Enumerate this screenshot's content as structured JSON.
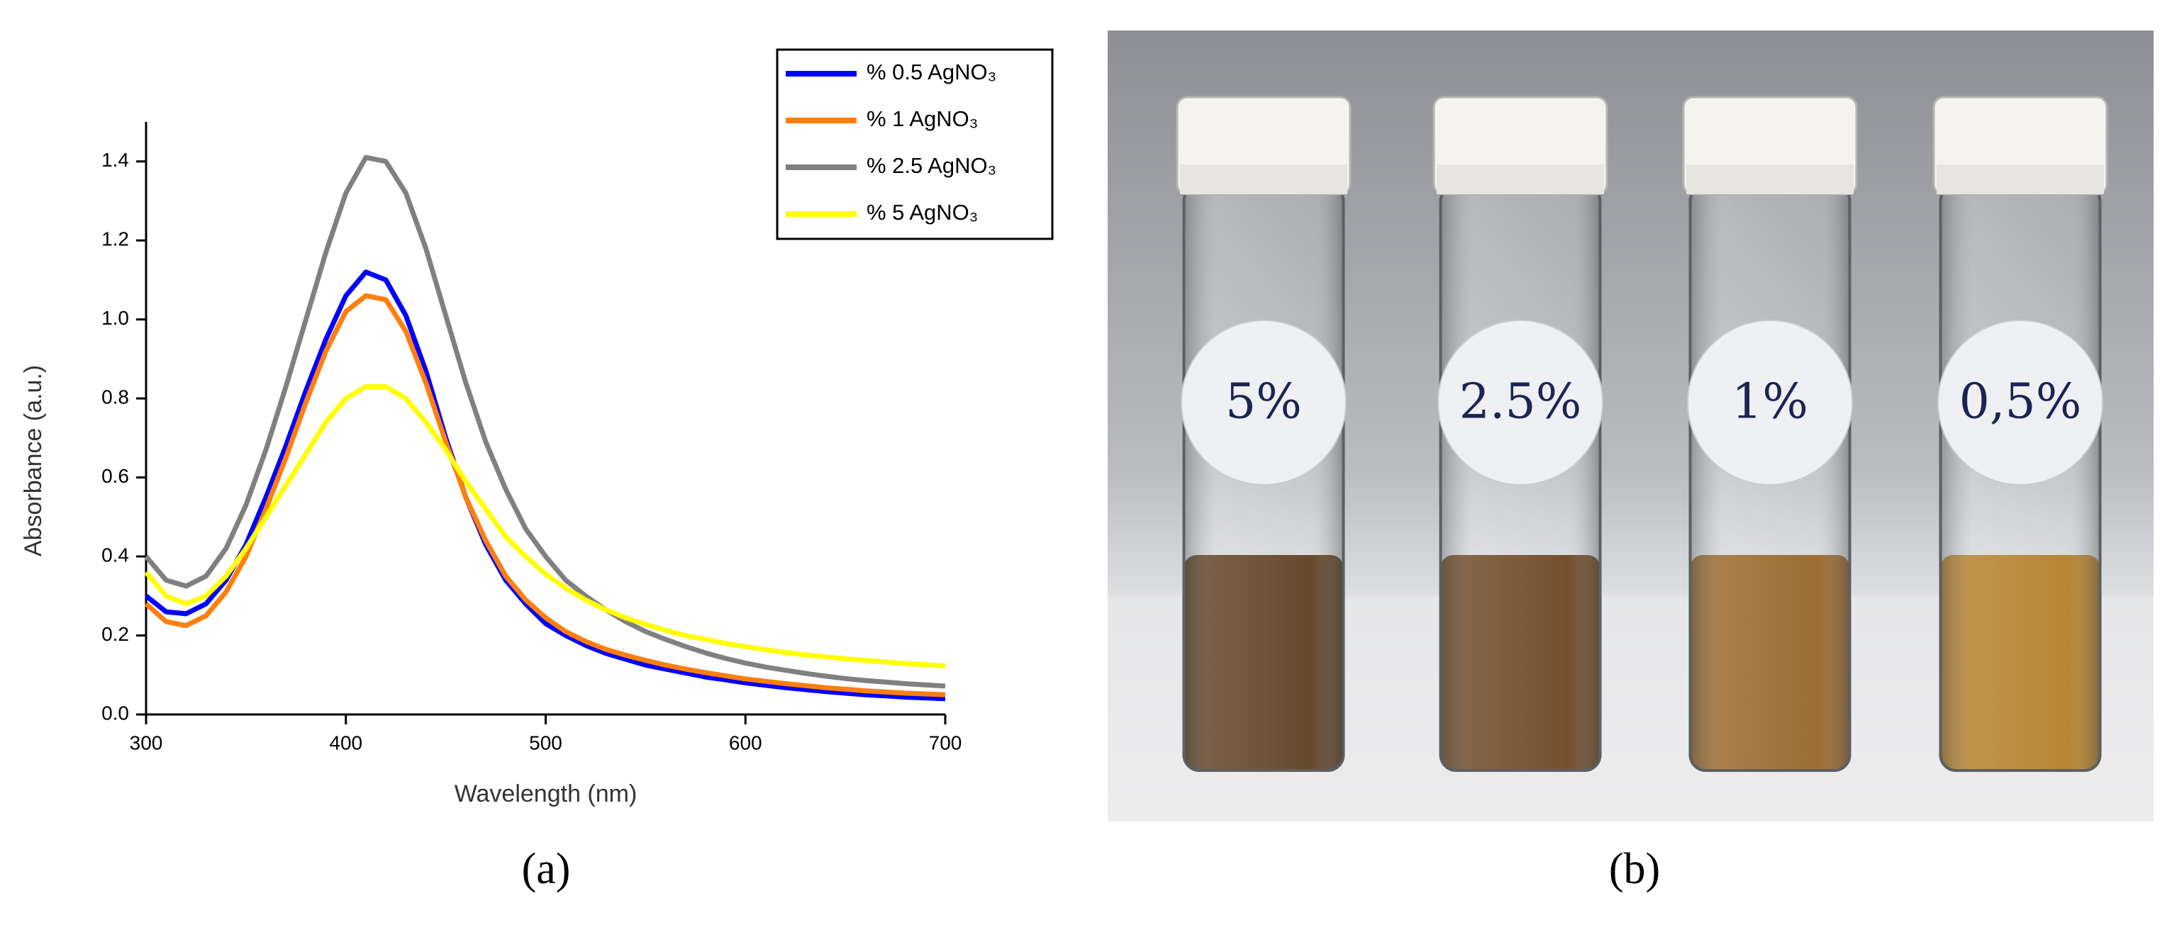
{
  "chart_data": {
    "type": "line",
    "x_label": "Wavelength (nm)",
    "y_label": "Absorbance (a.u.)",
    "x": [
      300,
      310,
      320,
      330,
      340,
      350,
      360,
      370,
      380,
      390,
      400,
      410,
      420,
      430,
      440,
      450,
      460,
      470,
      480,
      490,
      500,
      510,
      520,
      530,
      540,
      550,
      560,
      570,
      580,
      590,
      600,
      610,
      620,
      630,
      640,
      650,
      660,
      670,
      680,
      690,
      700
    ],
    "series": [
      {
        "name": "% 0.5 AgNO₃",
        "color": "#0000ff",
        "values": [
          0.3,
          0.26,
          0.255,
          0.28,
          0.34,
          0.43,
          0.55,
          0.68,
          0.82,
          0.95,
          1.06,
          1.12,
          1.1,
          1.01,
          0.87,
          0.7,
          0.55,
          0.43,
          0.34,
          0.28,
          0.23,
          0.2,
          0.175,
          0.155,
          0.14,
          0.125,
          0.115,
          0.105,
          0.095,
          0.088,
          0.08,
          0.074,
          0.068,
          0.063,
          0.058,
          0.054,
          0.05,
          0.047,
          0.044,
          0.042,
          0.04
        ]
      },
      {
        "name": "% 1 AgNO₃",
        "color": "#ff7f0e",
        "values": [
          0.28,
          0.235,
          0.225,
          0.25,
          0.31,
          0.4,
          0.52,
          0.65,
          0.79,
          0.92,
          1.02,
          1.06,
          1.05,
          0.97,
          0.84,
          0.69,
          0.55,
          0.44,
          0.35,
          0.29,
          0.245,
          0.21,
          0.185,
          0.165,
          0.15,
          0.137,
          0.125,
          0.115,
          0.106,
          0.098,
          0.09,
          0.084,
          0.078,
          0.073,
          0.068,
          0.064,
          0.06,
          0.057,
          0.054,
          0.052,
          0.05
        ]
      },
      {
        "name": "% 2.5 AgNO₃",
        "color": "#808080",
        "values": [
          0.4,
          0.34,
          0.325,
          0.35,
          0.42,
          0.53,
          0.67,
          0.83,
          1.0,
          1.17,
          1.32,
          1.41,
          1.4,
          1.32,
          1.18,
          1.01,
          0.84,
          0.69,
          0.57,
          0.47,
          0.4,
          0.34,
          0.3,
          0.265,
          0.235,
          0.21,
          0.19,
          0.172,
          0.156,
          0.142,
          0.13,
          0.12,
          0.112,
          0.104,
          0.097,
          0.091,
          0.086,
          0.082,
          0.078,
          0.075,
          0.072
        ]
      },
      {
        "name": "% 5 AgNO₃",
        "color": "#ffff00",
        "values": [
          0.36,
          0.3,
          0.28,
          0.3,
          0.35,
          0.42,
          0.5,
          0.58,
          0.66,
          0.74,
          0.8,
          0.83,
          0.83,
          0.8,
          0.74,
          0.67,
          0.59,
          0.52,
          0.45,
          0.4,
          0.355,
          0.32,
          0.29,
          0.265,
          0.245,
          0.228,
          0.213,
          0.2,
          0.19,
          0.18,
          0.172,
          0.164,
          0.157,
          0.151,
          0.146,
          0.141,
          0.137,
          0.133,
          0.129,
          0.126,
          0.123
        ]
      }
    ],
    "xlim": [
      300,
      700
    ],
    "xticks": [
      300,
      400,
      500,
      600,
      700
    ],
    "ylim": [
      0,
      1.5
    ],
    "yticks": [
      {
        "value": 0,
        "label": "0.0"
      },
      0.2,
      0.4,
      0.6,
      0.8,
      {
        "value": 1,
        "label": "1.0"
      },
      1.2,
      1.4
    ],
    "legend": "top-right"
  },
  "photo": {
    "labels": [
      "5%",
      "2.5%",
      "1%",
      "0,5%"
    ]
  },
  "captions": [
    "(a)",
    "(b)"
  ]
}
